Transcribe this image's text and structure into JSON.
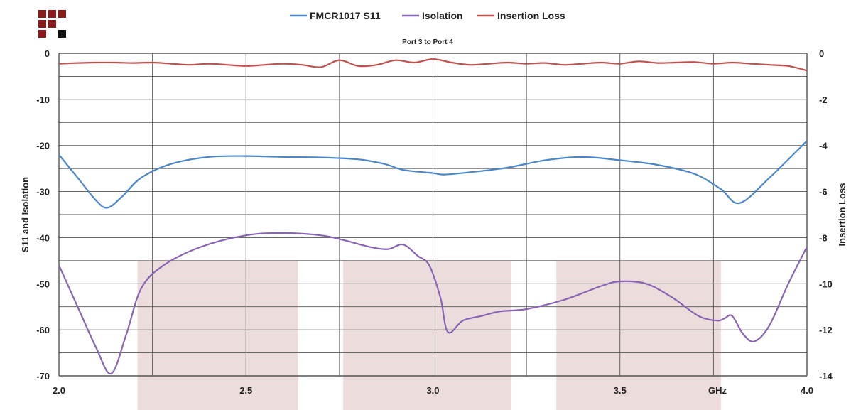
{
  "chart_data": {
    "type": "line",
    "subtitle": "Port 3 to Port 4",
    "x_unit": "GHz",
    "xlim": [
      2.0,
      4.0
    ],
    "x_ticks": [
      "2.0",
      "2.5",
      "3.0",
      "3.5",
      "4.0"
    ],
    "ylabel": "S11 and Isolation",
    "ylim": [
      -70,
      0
    ],
    "y_ticks": [
      "0",
      "-10",
      "-20",
      "-30",
      "-40",
      "-50",
      "-60",
      "-70"
    ],
    "y2label": "Insertion Loss",
    "y2lim": [
      -14,
      0
    ],
    "y2_ticks": [
      "0",
      "-2",
      "-4",
      "-6",
      "-8",
      "-10",
      "-12",
      "-14"
    ],
    "grid": true,
    "legend_position": "top",
    "shaded_bands": [
      [
        2.21,
        2.64
      ],
      [
        2.76,
        3.21
      ],
      [
        3.33,
        3.77
      ]
    ],
    "series": [
      {
        "name": "FMCR1017 S11",
        "axis": "left",
        "color": "#4a86c8",
        "x": [
          2.0,
          2.05,
          2.1,
          2.13,
          2.17,
          2.22,
          2.3,
          2.4,
          2.5,
          2.6,
          2.7,
          2.8,
          2.87,
          2.92,
          3.0,
          3.03,
          3.1,
          3.2,
          3.3,
          3.4,
          3.5,
          3.6,
          3.7,
          3.77,
          3.82,
          3.9,
          4.0
        ],
        "y": [
          -22,
          -27,
          -32,
          -33.5,
          -31,
          -27,
          -24,
          -22.5,
          -22.3,
          -22.5,
          -22.6,
          -23,
          -24,
          -25.3,
          -26,
          -26.3,
          -25.8,
          -24.8,
          -23.2,
          -22.5,
          -23.2,
          -24.2,
          -26.2,
          -29.5,
          -32.5,
          -27,
          -19
        ]
      },
      {
        "name": "Isolation",
        "axis": "left",
        "color": "#8a64b4",
        "x": [
          2.0,
          2.05,
          2.1,
          2.14,
          2.18,
          2.22,
          2.28,
          2.38,
          2.5,
          2.6,
          2.7,
          2.76,
          2.83,
          2.88,
          2.92,
          2.96,
          2.99,
          3.02,
          3.04,
          3.08,
          3.13,
          3.18,
          3.25,
          3.35,
          3.45,
          3.5,
          3.57,
          3.64,
          3.71,
          3.76,
          3.78,
          3.8,
          3.83,
          3.86,
          3.9,
          3.95,
          4.0
        ],
        "y": [
          -46,
          -55,
          -64,
          -69.5,
          -61,
          -51,
          -46,
          -42,
          -39.5,
          -39,
          -39.5,
          -40.5,
          -42,
          -42.5,
          -41.5,
          -44,
          -46,
          -53,
          -60.5,
          -58,
          -57,
          -56,
          -55.5,
          -53.5,
          -50.5,
          -49.5,
          -50,
          -53,
          -57,
          -58,
          -57.5,
          -57,
          -61,
          -62.5,
          -59,
          -50,
          -42
        ]
      },
      {
        "name": "Insertion Loss",
        "axis": "right",
        "color": "#c0504d",
        "x": [
          2.0,
          2.05,
          2.1,
          2.15,
          2.2,
          2.25,
          2.3,
          2.35,
          2.4,
          2.45,
          2.5,
          2.55,
          2.6,
          2.65,
          2.7,
          2.75,
          2.8,
          2.85,
          2.9,
          2.95,
          3.0,
          3.05,
          3.1,
          3.15,
          3.2,
          3.25,
          3.3,
          3.35,
          3.4,
          3.45,
          3.5,
          3.55,
          3.6,
          3.65,
          3.7,
          3.75,
          3.8,
          3.85,
          3.9,
          3.95,
          4.0
        ],
        "y": [
          -0.45,
          -0.42,
          -0.4,
          -0.4,
          -0.42,
          -0.4,
          -0.45,
          -0.5,
          -0.45,
          -0.5,
          -0.55,
          -0.5,
          -0.45,
          -0.5,
          -0.6,
          -0.3,
          -0.55,
          -0.5,
          -0.3,
          -0.4,
          -0.25,
          -0.4,
          -0.5,
          -0.45,
          -0.4,
          -0.45,
          -0.42,
          -0.5,
          -0.45,
          -0.4,
          -0.45,
          -0.35,
          -0.42,
          -0.4,
          -0.38,
          -0.45,
          -0.4,
          -0.45,
          -0.5,
          -0.55,
          -0.75
        ]
      }
    ]
  }
}
